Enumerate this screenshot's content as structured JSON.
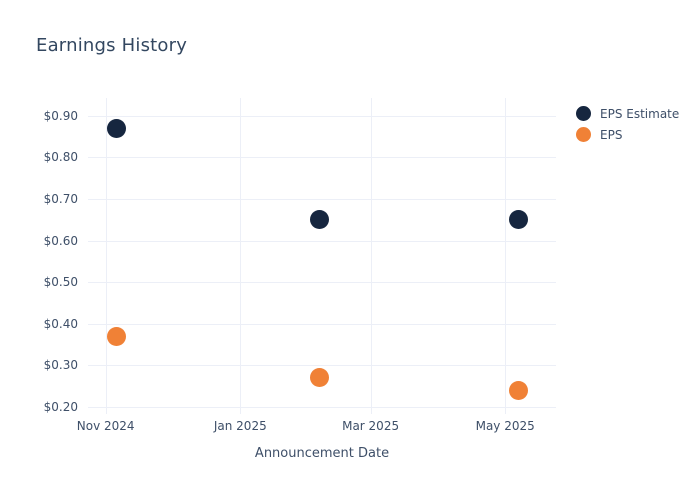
{
  "chart_data": {
    "type": "scatter",
    "title": "Earnings History",
    "xlabel": "Announcement Date",
    "ylabel": "",
    "legend_position": "top-right",
    "grid": true,
    "x_tick_labels": [
      "Nov 2024",
      "Jan 2025",
      "Mar 2025",
      "May 2025"
    ],
    "x_tick_dates": [
      "2024-11-01",
      "2025-01-01",
      "2025-03-01",
      "2025-05-01"
    ],
    "x_domain": [
      "2024-10-24",
      "2025-05-24"
    ],
    "y_ticks": [
      0.9,
      0.8,
      0.7,
      0.6,
      0.5,
      0.4,
      0.3,
      0.2
    ],
    "y_tick_prefix": "$",
    "ylim": [
      0.187,
      0.943
    ],
    "series": [
      {
        "name": "EPS Estimate",
        "color": "#16263f",
        "points": [
          {
            "x": "2024-11-06",
            "y": 0.87
          },
          {
            "x": "2025-02-06",
            "y": 0.65
          },
          {
            "x": "2025-05-07",
            "y": 0.65
          }
        ]
      },
      {
        "name": "EPS",
        "color": "#f08136",
        "points": [
          {
            "x": "2024-11-06",
            "y": 0.37
          },
          {
            "x": "2025-02-06",
            "y": 0.27
          },
          {
            "x": "2025-05-07",
            "y": 0.24
          }
        ]
      }
    ],
    "colors": {
      "background": "#ffffff",
      "grid": "#eceff7",
      "title_text": "#334760",
      "tick_text": "#3e4f68"
    }
  }
}
